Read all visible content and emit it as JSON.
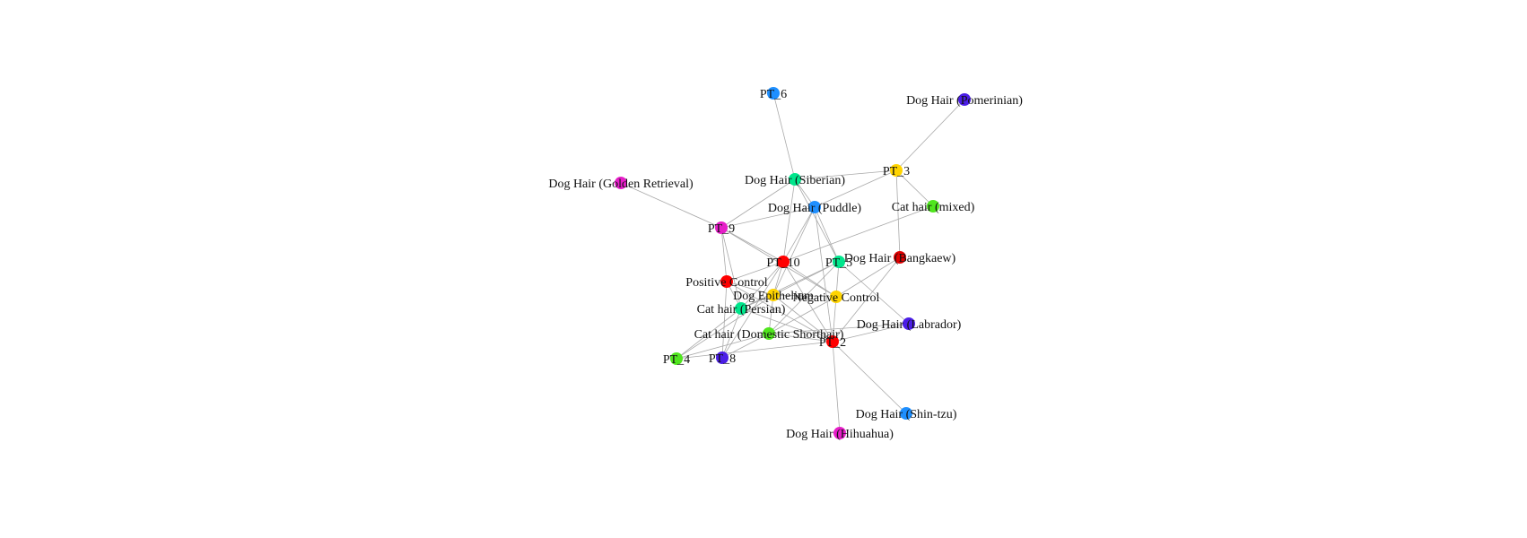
{
  "nodes": [
    {
      "id": "pt16",
      "label": "PT_6",
      "color": "#1e8fff"
    },
    {
      "id": "pomeranian",
      "label": "Dog Hair (Pomerinian)",
      "color": "#4b1ee6"
    },
    {
      "id": "pt3",
      "label": "PT_3",
      "color": "#ffd400"
    },
    {
      "id": "golden",
      "label": "Dog Hair (Golden Retrieval)",
      "color": "#e61ec8"
    },
    {
      "id": "siberian",
      "label": "Dog Hair (Siberian)",
      "color": "#00e68c"
    },
    {
      "id": "catmixed",
      "label": "Cat hair (mixed)",
      "color": "#50e61e"
    },
    {
      "id": "puddle",
      "label": "Dog Hair (Puddle)",
      "color": "#1e8fff"
    },
    {
      "id": "pt9",
      "label": "PT_9",
      "color": "#e61ec8"
    },
    {
      "id": "bangkaew",
      "label": "Dog Hair (Bangkaew)",
      "color": "#e00000"
    },
    {
      "id": "pt10",
      "label": "PT_10",
      "color": "#ff0000"
    },
    {
      "id": "pt5",
      "label": "PT_5",
      "color": "#00e68c"
    },
    {
      "id": "positive",
      "label": "Positive Control",
      "color": "#ff0000"
    },
    {
      "id": "epithelium",
      "label": "Dog Epithelium",
      "color": "#ffd400"
    },
    {
      "id": "negative",
      "label": "Negative Control",
      "color": "#ffd400"
    },
    {
      "id": "persian",
      "label": "Cat hair (Persian)",
      "color": "#00e68c"
    },
    {
      "id": "labrador",
      "label": "Dog Hair (Labrador)",
      "color": "#4b1ee6"
    },
    {
      "id": "domestic",
      "label": "Cat hair (Domestic Shorthair)",
      "color": "#50e61e"
    },
    {
      "id": "pt2",
      "label": "PT_2",
      "color": "#ff0000"
    },
    {
      "id": "pt4",
      "label": "PT_4",
      "color": "#50e61e"
    },
    {
      "id": "pt8",
      "label": "PT_8",
      "color": "#4b1ee6"
    },
    {
      "id": "shintzu",
      "label": "Dog Hair (Shin-tzu)",
      "color": "#1e8fff"
    },
    {
      "id": "chihuahua",
      "label": "Dog Hair (Hihuahua)",
      "color": "#e61ec8"
    }
  ],
  "edges": [
    [
      "pt16",
      "siberian"
    ],
    [
      "pomeranian",
      "pt3"
    ],
    [
      "golden",
      "pt9"
    ],
    [
      "siberian",
      "pt3"
    ],
    [
      "siberian",
      "pt9"
    ],
    [
      "siberian",
      "pt10"
    ],
    [
      "siberian",
      "pt5"
    ],
    [
      "siberian",
      "puddle"
    ],
    [
      "pt3",
      "puddle"
    ],
    [
      "pt3",
      "catmixed"
    ],
    [
      "pt3",
      "bangkaew"
    ],
    [
      "catmixed",
      "pt10"
    ],
    [
      "puddle",
      "pt10"
    ],
    [
      "puddle",
      "pt5"
    ],
    [
      "puddle",
      "pt2"
    ],
    [
      "puddle",
      "epithelium"
    ],
    [
      "puddle",
      "pt9"
    ],
    [
      "pt9",
      "positive"
    ],
    [
      "pt9",
      "persian"
    ],
    [
      "pt9",
      "pt10"
    ],
    [
      "pt9",
      "negative"
    ],
    [
      "bangkaew",
      "pt2"
    ],
    [
      "bangkaew",
      "negative"
    ],
    [
      "pt10",
      "positive"
    ],
    [
      "pt10",
      "epithelium"
    ],
    [
      "pt10",
      "negative"
    ],
    [
      "pt10",
      "pt2"
    ],
    [
      "pt10",
      "pt8"
    ],
    [
      "pt10",
      "persian"
    ],
    [
      "pt5",
      "epithelium"
    ],
    [
      "pt5",
      "negative"
    ],
    [
      "pt5",
      "labrador"
    ],
    [
      "pt5",
      "domestic"
    ],
    [
      "pt5",
      "persian"
    ],
    [
      "positive",
      "persian"
    ],
    [
      "positive",
      "epithelium"
    ],
    [
      "positive",
      "pt2"
    ],
    [
      "positive",
      "pt8"
    ],
    [
      "epithelium",
      "persian"
    ],
    [
      "epithelium",
      "domestic"
    ],
    [
      "epithelium",
      "negative"
    ],
    [
      "epithelium",
      "pt2"
    ],
    [
      "epithelium",
      "pt4"
    ],
    [
      "negative",
      "pt2"
    ],
    [
      "negative",
      "domestic"
    ],
    [
      "persian",
      "pt4"
    ],
    [
      "persian",
      "pt8"
    ],
    [
      "persian",
      "pt2"
    ],
    [
      "labrador",
      "pt2"
    ],
    [
      "labrador",
      "domestic"
    ],
    [
      "domestic",
      "pt8"
    ],
    [
      "domestic",
      "pt2"
    ],
    [
      "domestic",
      "pt4"
    ],
    [
      "pt2",
      "shintzu"
    ],
    [
      "pt2",
      "chihuahua"
    ],
    [
      "pt2",
      "pt4"
    ]
  ]
}
